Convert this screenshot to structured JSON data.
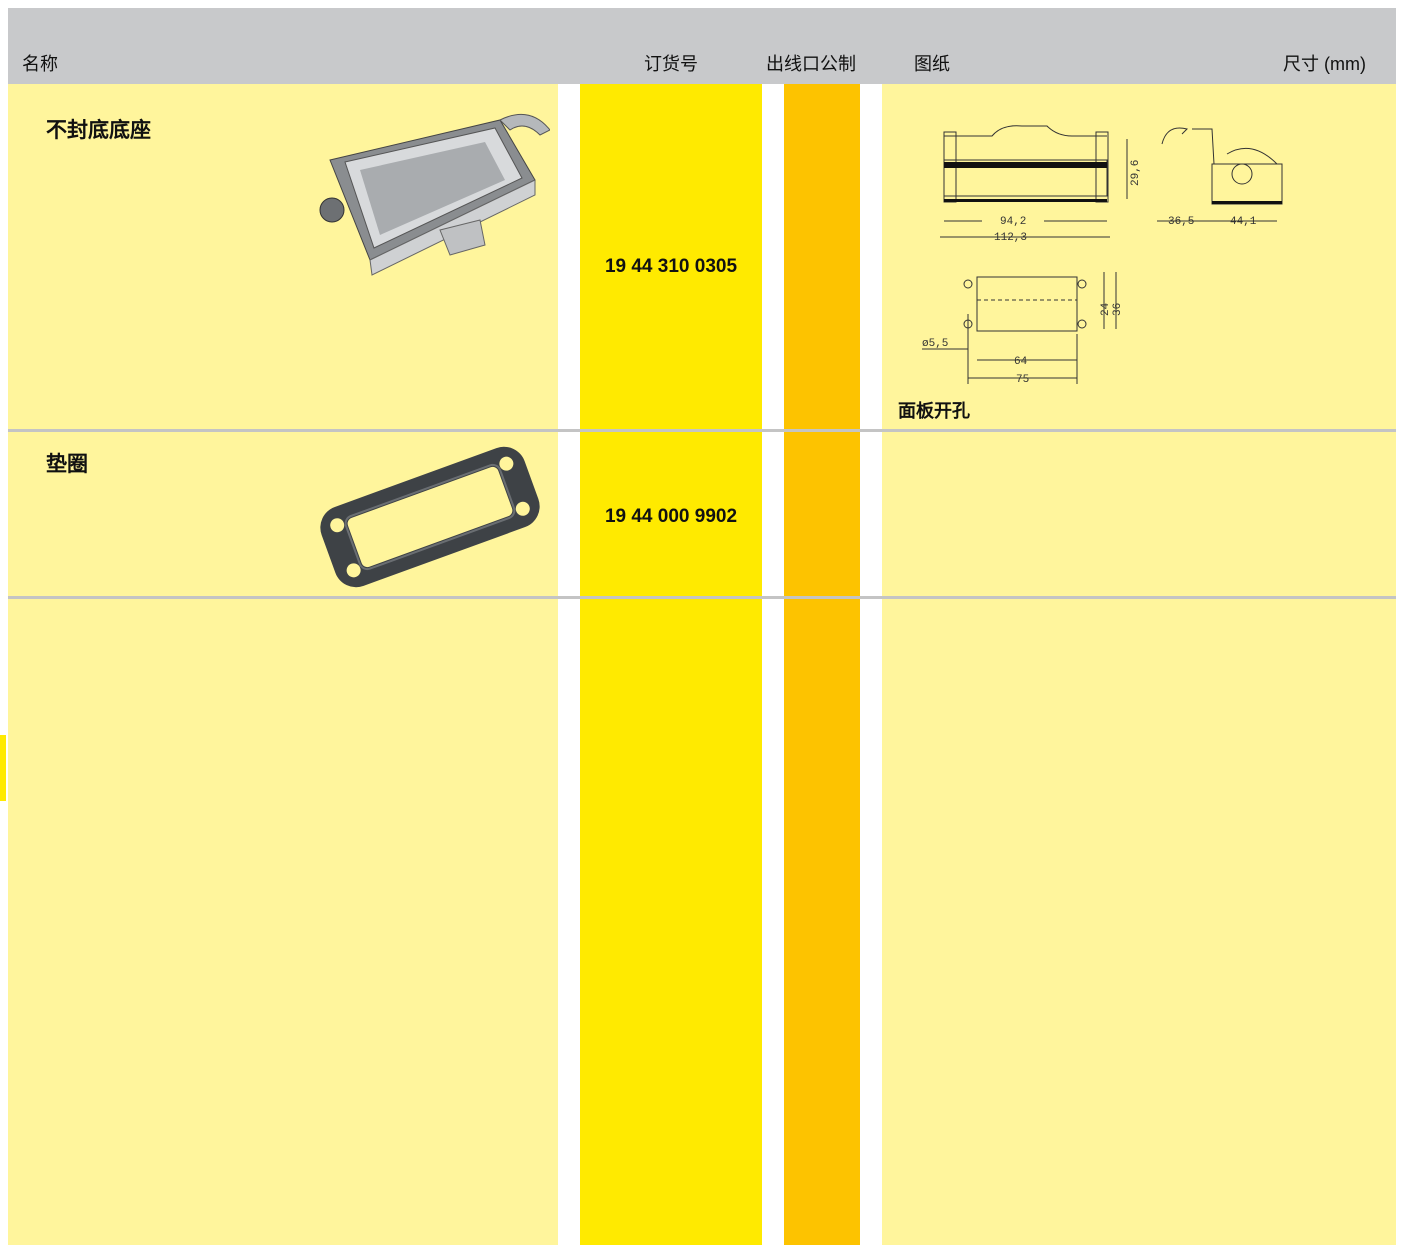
{
  "header": {
    "columns": [
      "名称",
      "订货号",
      "出线口公制",
      "图纸",
      "尺寸 (mm)"
    ]
  },
  "rows": [
    {
      "name": "不封底底座",
      "order_number": "19 44 310 0305",
      "drawing_caption": "面板开孔"
    },
    {
      "name": "垫圈",
      "order_number": "19 44 000 9902"
    }
  ],
  "drawing": {
    "labels": [
      "94,2",
      "112,3",
      "29,6",
      "36,5",
      "44,1",
      "24",
      "36",
      "ø5,5",
      "64",
      "75"
    ]
  }
}
